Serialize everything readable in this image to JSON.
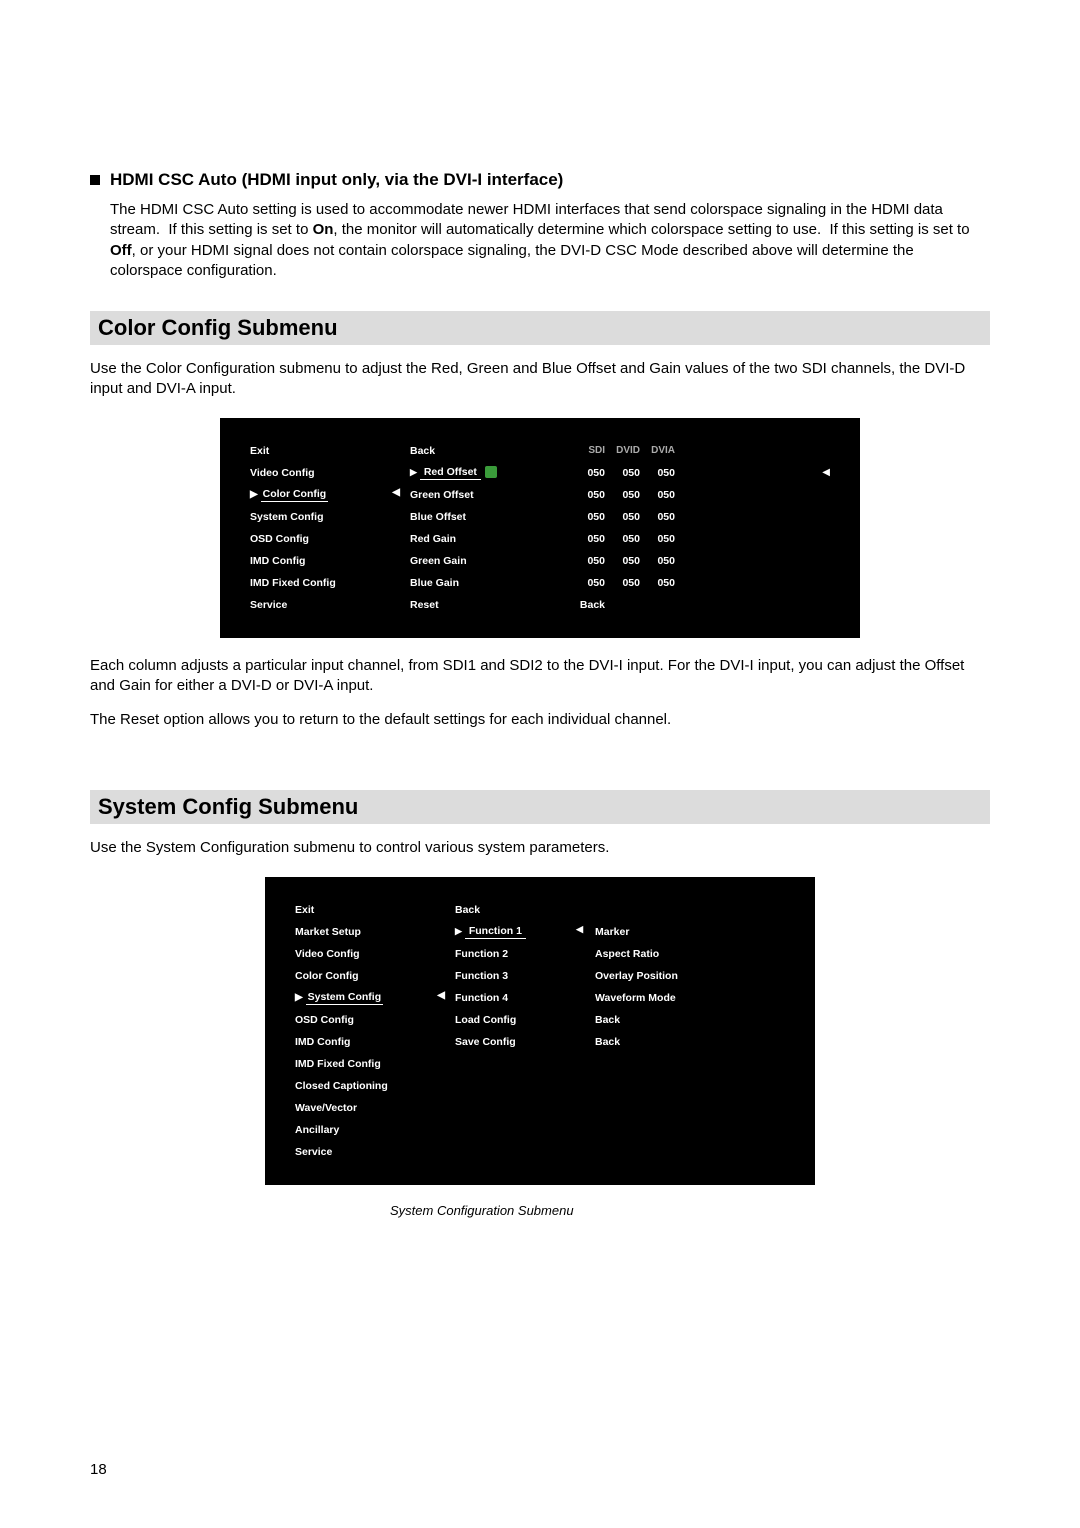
{
  "sec1": {
    "heading": "HDMI CSC Auto (HDMI input only, via the DVI-I interface)",
    "para": "The HDMI CSC Auto setting is used to accommodate newer HDMI interfaces that send colorspace signaling in the HDMI data stream.  If this setting is set to On, the monitor will automatically determine which colorspace setting to use.  If this setting is set to Off, or your HDMI signal does not contain colorspace signaling, the DVI-D CSC Mode described above will determine the colorspace configuration."
  },
  "color_section": {
    "title": "Color Config Submenu",
    "intro": "Use the Color Configuration submenu to adjust the Red, Green and Blue Offset and Gain values of the two SDI channels, the DVI-D input and DVI-A input.",
    "menu": {
      "headers": {
        "c3": "SDI",
        "c4": "DVID",
        "c5": "DVIA"
      },
      "left": [
        "Exit",
        "Video Config",
        "Color Config",
        "System Config",
        "OSD Config",
        "IMD Config",
        "IMD Fixed Config",
        "Service"
      ],
      "mid": [
        "Back",
        "Red Offset",
        "Green Offset",
        "Blue Offset",
        "Red Gain",
        "Green Gain",
        "Blue Gain",
        "Reset"
      ],
      "vals": [
        [
          "",
          "",
          ""
        ],
        [
          "050",
          "050",
          "050"
        ],
        [
          "050",
          "050",
          "050"
        ],
        [
          "050",
          "050",
          "050"
        ],
        [
          "050",
          "050",
          "050"
        ],
        [
          "050",
          "050",
          "050"
        ],
        [
          "050",
          "050",
          "050"
        ],
        [
          "Back",
          "",
          ""
        ]
      ],
      "selected_left_idx": 2,
      "selected_mid_idx": 1
    },
    "para2": "Each column adjusts a particular input channel, from SDI1 and SDI2 to the DVI-I input.  For the DVI-I input, you can adjust the Offset and Gain for either a DVI-D or DVI-A input.",
    "para3": "The Reset option allows you to return to the default settings for each individual channel."
  },
  "system_section": {
    "title": "System Config Submenu",
    "intro": "Use the System Configuration submenu to control various system parameters.",
    "menu": {
      "left": [
        "Exit",
        "Market Setup",
        "Video Config",
        "Color Config",
        "System Config",
        "OSD Config",
        "IMD Config",
        "IMD Fixed Config",
        "Closed Captioning",
        "Wave/Vector",
        "Ancillary",
        "Service"
      ],
      "mid": [
        "Back",
        "Function 1",
        "Function 2",
        "Function 3",
        "Function 4",
        "Load Config",
        "Save Config"
      ],
      "vals": [
        "",
        "Marker",
        "Aspect Ratio",
        "Overlay Position",
        "Waveform Mode",
        "Back",
        "Back"
      ],
      "selected_left_idx": 4,
      "selected_mid_idx": 1
    },
    "caption": "System Configuration Submenu"
  },
  "page_number": "18"
}
